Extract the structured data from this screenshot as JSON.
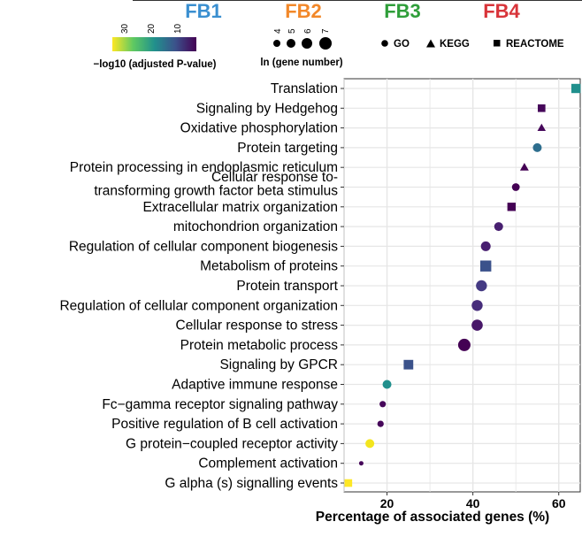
{
  "headers": [
    {
      "label": "FB1",
      "color": "#3a8fd0"
    },
    {
      "label": "FB2",
      "color": "#f2882a"
    },
    {
      "label": "FB3",
      "color": "#2f9e3a"
    },
    {
      "label": "FB4",
      "color": "#d8343a"
    }
  ],
  "legend": {
    "color_title": "−log10 (adjusted P-value)",
    "color_ticks": [
      "30",
      "20",
      "10"
    ],
    "size_title": "ln (gene number)",
    "size_ticks": [
      "4",
      "5",
      "6",
      "7"
    ],
    "shape_items": [
      {
        "shape": "circle",
        "label": "GO"
      },
      {
        "shape": "triangle",
        "label": "KEGG"
      },
      {
        "shape": "square",
        "label": "REACTOME"
      }
    ]
  },
  "chart_data": {
    "type": "scatter",
    "xlabel": "Percentage of associated genes (%)",
    "ylabel": "",
    "xlim": [
      10,
      65
    ],
    "xticks": [
      20,
      40,
      60
    ],
    "xtick_labels": [
      "20",
      "40",
      "60"
    ],
    "points": [
      {
        "term": "Translation",
        "x": 64,
        "db": "REACTOME",
        "color": "#21908d",
        "size": 5.2
      },
      {
        "term": "Signaling by Hedgehog",
        "x": 56,
        "db": "REACTOME",
        "color": "#46075a",
        "size": 4.3
      },
      {
        "term": "Oxidative phosphorylation",
        "x": 56,
        "db": "KEGG",
        "color": "#46075a",
        "size": 4.3
      },
      {
        "term": "Protein targeting",
        "x": 55,
        "db": "GO",
        "color": "#2e6e8e",
        "size": 5.0
      },
      {
        "term": "Protein processing in endoplasmic reticulum",
        "x": 52,
        "db": "KEGG",
        "color": "#440154",
        "size": 4.5
      },
      {
        "term": "Cellular response to-\ntransforming growth factor beta stimulus",
        "x": 50,
        "db": "GO",
        "color": "#440154",
        "size": 4.4
      },
      {
        "term": "Extracellular matrix organization",
        "x": 49,
        "db": "REACTOME",
        "color": "#440154",
        "size": 4.7
      },
      {
        "term": "mitochondrion organization",
        "x": 46,
        "db": "GO",
        "color": "#481f70",
        "size": 5.0
      },
      {
        "term": "Regulation of cellular component biogenesis",
        "x": 43,
        "db": "GO",
        "color": "#481f70",
        "size": 5.5
      },
      {
        "term": "Metabolism of proteins",
        "x": 43,
        "db": "REACTOME",
        "color": "#3b528b",
        "size": 6.2
      },
      {
        "term": "Protein transport",
        "x": 42,
        "db": "GO",
        "color": "#443a83",
        "size": 6.2
      },
      {
        "term": "Regulation of cellular component organization",
        "x": 41,
        "db": "GO",
        "color": "#472d7b",
        "size": 6.2
      },
      {
        "term": "Cellular response to stress",
        "x": 41,
        "db": "GO",
        "color": "#481769",
        "size": 6.3
      },
      {
        "term": "Protein metabolic process",
        "x": 38,
        "db": "GO",
        "color": "#440154",
        "size": 7.0
      },
      {
        "term": "Signaling by GPCR",
        "x": 25,
        "db": "REACTOME",
        "color": "#3b528b",
        "size": 5.4
      },
      {
        "term": "Adaptive immune response",
        "x": 20,
        "db": "GO",
        "color": "#21908d",
        "size": 5.0
      },
      {
        "term": "Fc−gamma receptor signaling pathway",
        "x": 19,
        "db": "GO",
        "color": "#46075a",
        "size": 3.6
      },
      {
        "term": "Positive regulation of B cell activation",
        "x": 18.5,
        "db": "GO",
        "color": "#46075a",
        "size": 3.6
      },
      {
        "term": "G protein−coupled receptor activity",
        "x": 16,
        "db": "GO",
        "color": "#f3e51e",
        "size": 5.0
      },
      {
        "term": "Complement activation",
        "x": 14,
        "db": "GO",
        "color": "#46075a",
        "size": 2.5
      },
      {
        "term": "G alpha (s) signalling events",
        "x": 11,
        "db": "REACTOME",
        "color": "#fde725",
        "size": 4.3
      }
    ]
  }
}
